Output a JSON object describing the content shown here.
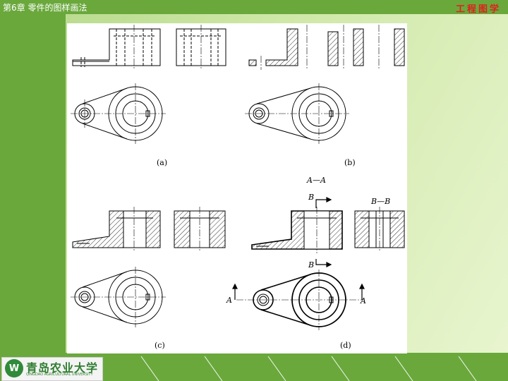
{
  "header": {
    "chapter_title": "第6章  零件的图样画法",
    "course_title": "工程图学"
  },
  "figure": {
    "labels": [
      "(a)",
      "(b)",
      "(c)",
      "(d)"
    ],
    "section_label_aa": "A—A",
    "section_label_bb": "B—B",
    "cut_letter_a": "A",
    "cut_letter_b": "B"
  },
  "footer": {
    "university_name": "青岛农业大学",
    "university_name_en": "QINGDAO AGRICULTURAL UNIVERSITY",
    "logo_glyph": "W"
  },
  "colors": {
    "theme_green": "#6aa83c",
    "title_red": "#e0201c"
  }
}
